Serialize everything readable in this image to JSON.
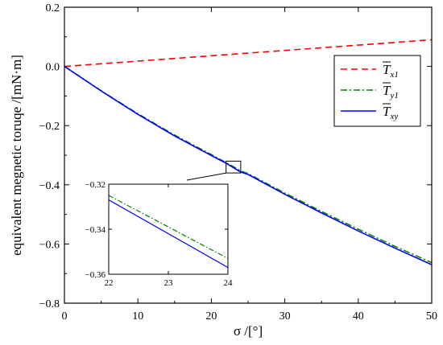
{
  "chart_data": [
    {
      "type": "line",
      "title": "",
      "xlabel": "σ /[°]",
      "ylabel": "equivalent megnetic toruqe /[mN·m]",
      "xlim": [
        0,
        50
      ],
      "ylim": [
        -0.8,
        0.2
      ],
      "xticks": [
        "0",
        "10",
        "20",
        "30",
        "40",
        "50"
      ],
      "yticks": [
        "0.2",
        "0.0",
        "−0.2",
        "−0.4",
        "−0.6",
        "−0.8"
      ],
      "legend_position": "right",
      "series": [
        {
          "name": "Tx1",
          "label_main": "T",
          "label_sub": "x1",
          "color": "#ff0000",
          "style": "dashed",
          "x": [
            0,
            5,
            10,
            15,
            20,
            25,
            30,
            35,
            40,
            45,
            50
          ],
          "y": [
            0.0,
            0.009,
            0.018,
            0.027,
            0.036,
            0.045,
            0.054,
            0.063,
            0.072,
            0.081,
            0.09
          ]
        },
        {
          "name": "Ty1",
          "label_main": "T",
          "label_sub": "y1",
          "color": "#008000",
          "style": "dashdot",
          "x": [
            0,
            5,
            10,
            15,
            20,
            22,
            23,
            24,
            25,
            30,
            35,
            40,
            45,
            50
          ],
          "y": [
            0.0,
            -0.082,
            -0.16,
            -0.232,
            -0.298,
            -0.325,
            -0.339,
            -0.353,
            -0.362,
            -0.428,
            -0.49,
            -0.55,
            -0.608,
            -0.663
          ]
        },
        {
          "name": "Txy",
          "label_main": "T",
          "label_sub": "xy",
          "color": "#0000ff",
          "style": "solid",
          "x": [
            0,
            5,
            10,
            15,
            20,
            22,
            23,
            24,
            25,
            30,
            35,
            40,
            45,
            50
          ],
          "y": [
            0.0,
            -0.083,
            -0.162,
            -0.235,
            -0.301,
            -0.327,
            -0.342,
            -0.357,
            -0.365,
            -0.432,
            -0.495,
            -0.556,
            -0.614,
            -0.67
          ]
        }
      ]
    },
    {
      "type": "line",
      "title": "",
      "xlim": [
        22,
        24
      ],
      "ylim": [
        -0.36,
        -0.32
      ],
      "xticks": [
        "22",
        "23",
        "24"
      ],
      "yticks": [
        "−0.32",
        "−0.34",
        "−0.36"
      ],
      "series": [
        {
          "name": "Ty1",
          "color": "#008000",
          "style": "dashdot",
          "x": [
            22,
            24
          ],
          "y": [
            -0.325,
            -0.353
          ]
        },
        {
          "name": "Txy",
          "color": "#0000ff",
          "style": "solid",
          "x": [
            22,
            24
          ],
          "y": [
            -0.327,
            -0.357
          ]
        }
      ]
    }
  ]
}
